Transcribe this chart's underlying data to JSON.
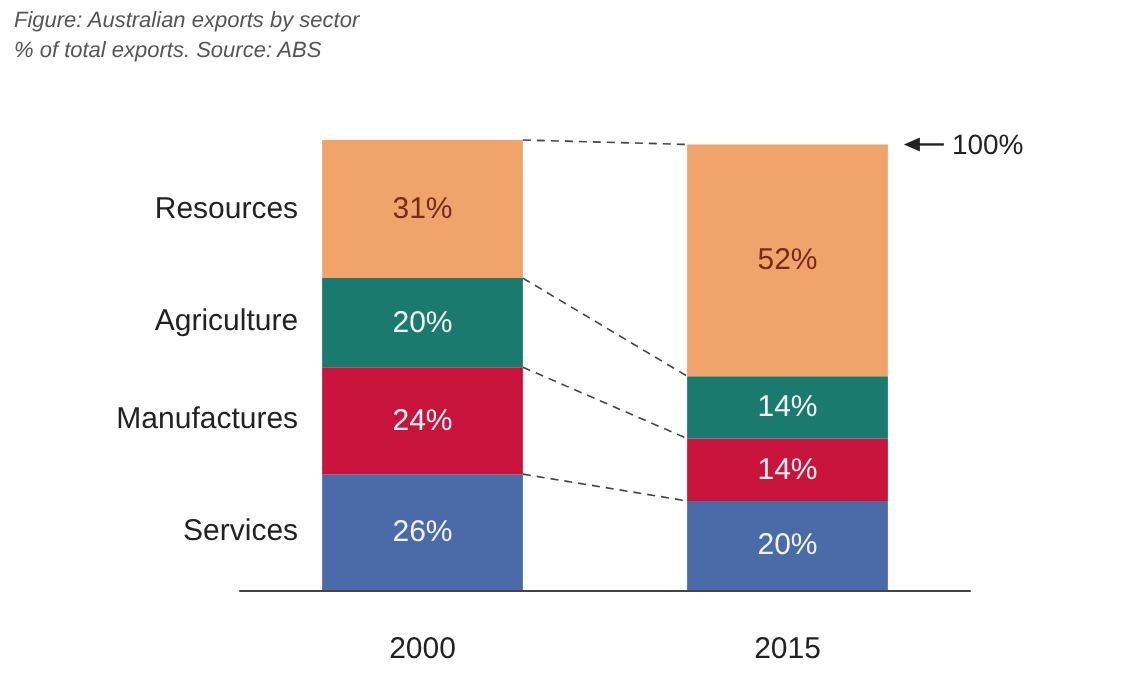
{
  "chart_data": {
    "type": "bar",
    "title": "Figure: Australian exports by sector",
    "subtitle": "% of total exports. Source: ABS",
    "categories": [
      "2000",
      "2015"
    ],
    "stacked": true,
    "legend": false,
    "series": [
      {
        "name": "Services",
        "color": "#4a6aa8",
        "values": [
          26,
          20
        ],
        "value_labels": [
          "26%",
          "20%"
        ]
      },
      {
        "name": "Manufactures",
        "color": "#c8143c",
        "values": [
          24,
          14
        ],
        "value_labels": [
          "24%",
          "14%"
        ]
      },
      {
        "name": "Agriculture",
        "color": "#1a7a6e",
        "values": [
          20,
          14
        ],
        "value_labels": [
          "20%",
          "14%"
        ]
      },
      {
        "name": "Resources",
        "color": "#f0a46c",
        "values": [
          31,
          52
        ],
        "value_labels": [
          "31%",
          "52%"
        ]
      }
    ],
    "annotations": [
      "100%"
    ]
  }
}
